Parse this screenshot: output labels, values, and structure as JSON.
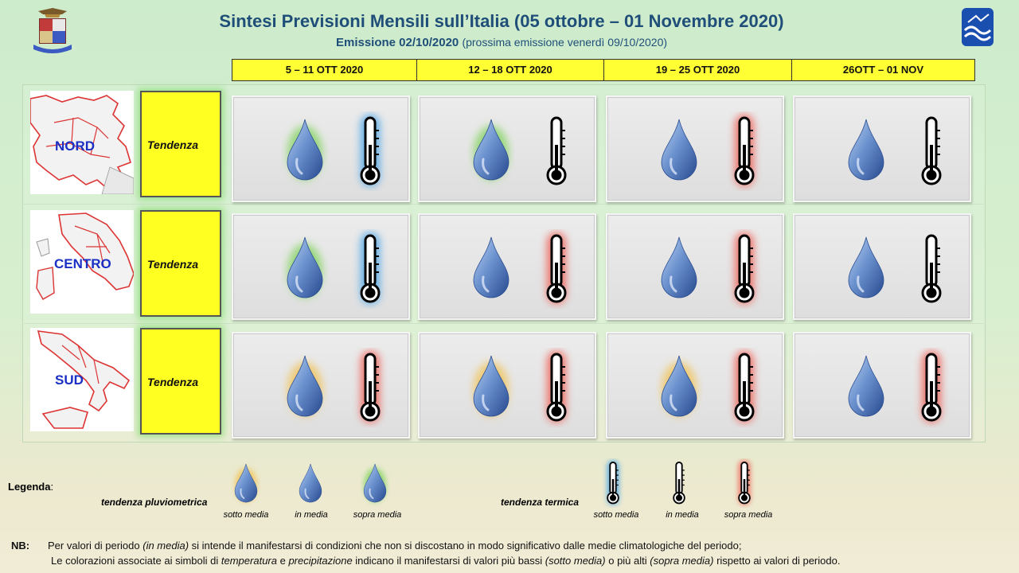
{
  "header": {
    "title": "Sintesi  Previsioni Mensili sull’Italia (05 ottobre – 01 Novembre 2020)",
    "emission": "Emissione 02/10/2020",
    "next_emission": "(prossima emissione venerdì 09/10/2020)"
  },
  "periods": [
    "5 – 11 OTT 2020",
    "12 – 18 OTT 2020",
    "19 – 25 OTT 2020",
    "26OTT – 01 NOV"
  ],
  "rows": [
    {
      "region": "NORD",
      "tendency_label": "Tendenza",
      "cells": [
        {
          "rain": "sopra media",
          "temp": "sotto media"
        },
        {
          "rain": "sopra media",
          "temp": "in media"
        },
        {
          "rain": "in media",
          "temp": "sopra media"
        },
        {
          "rain": "in media",
          "temp": "in media"
        }
      ]
    },
    {
      "region": "CENTRO",
      "tendency_label": "Tendenza",
      "cells": [
        {
          "rain": "sopra media",
          "temp": "sotto media"
        },
        {
          "rain": "in media",
          "temp": "sopra media"
        },
        {
          "rain": "in media",
          "temp": "sopra media"
        },
        {
          "rain": "in media",
          "temp": "in media"
        }
      ]
    },
    {
      "region": "SUD",
      "tendency_label": "Tendenza",
      "cells": [
        {
          "rain": "sotto media",
          "temp": "sopra media"
        },
        {
          "rain": "sotto media",
          "temp": "sopra media"
        },
        {
          "rain": "sotto media",
          "temp": "sopra media"
        },
        {
          "rain": "in media",
          "temp": "sopra media"
        }
      ]
    }
  ],
  "colors": {
    "sotto_rain": "#f2c14e",
    "sopra_rain": "#7fd35a",
    "sotto_temp": "#3fa0e8",
    "sopra_temp": "#f05a4f",
    "tendenza_bg": "#ffff22",
    "title_color": "#1f4e79",
    "region_label": "#1a2fc4"
  },
  "legend": {
    "title": "Legenda",
    "colon": ":",
    "rain_label": "tendenza pluviometrica",
    "temp_label": "tendenza termica",
    "captions": [
      "sotto media",
      "in media",
      "sopra media"
    ]
  },
  "note": {
    "prefix": "NB:",
    "line1_a": "Per valori di periodo ",
    "line1_em": "(in media)",
    "line1_b": " si intende il manifestarsi di condizioni che non si discostano in modo significativo dalle medie climatologiche del periodo;",
    "line2_a": "Le colorazioni associate ai simboli di ",
    "line2_em1": "temperatura",
    "line2_b": " e ",
    "line2_em2": "precipitazione",
    "line2_c": " indicano il manifestarsi di valori più bassi ",
    "line2_em3": "(sotto media)",
    "line2_d": " o più alti ",
    "line2_em4": "(sopra media)",
    "line2_e": " rispetto ai valori di periodo."
  },
  "icons": {
    "left_logo": "aeronautica-crest-icon",
    "right_logo": "cnmca-logo-icon",
    "rain": "raindrop-icon",
    "temp": "thermometer-icon"
  }
}
